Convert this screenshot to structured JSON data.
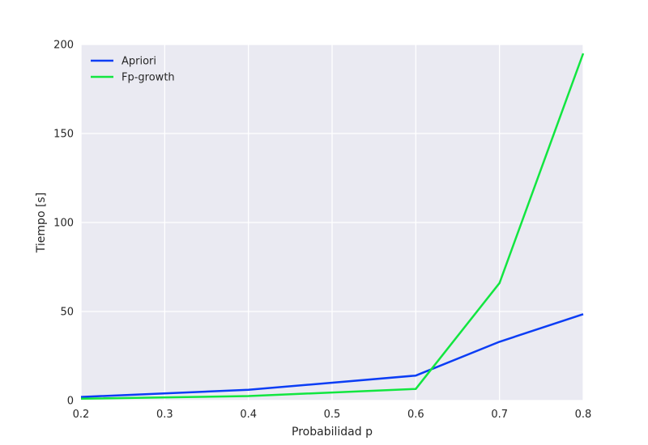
{
  "chart_data": {
    "type": "line",
    "x": [
      0.2,
      0.4,
      0.6,
      0.7,
      0.8
    ],
    "series": [
      {
        "name": "Apriori",
        "values": [
          2,
          6,
          14,
          33,
          48.5
        ],
        "color": "#0b3df5"
      },
      {
        "name": "Fp-growth",
        "values": [
          1,
          2.5,
          6.5,
          66,
          195
        ],
        "color": "#12e640"
      }
    ],
    "xlabel": "Probabilidad p",
    "ylabel": "Tiempo [s]",
    "xlim": [
      0.2,
      0.8
    ],
    "ylim": [
      0,
      200
    ],
    "xticks": [
      0.2,
      0.3,
      0.4,
      0.5,
      0.6,
      0.7,
      0.8
    ],
    "xtick_labels": [
      "0.2",
      "0.3",
      "0.4",
      "0.5",
      "0.6",
      "0.7",
      "0.8"
    ],
    "yticks": [
      0,
      50,
      100,
      150,
      200
    ],
    "ytick_labels": [
      "0",
      "50",
      "100",
      "150",
      "200"
    ],
    "grid": true,
    "legend_position": "top-left",
    "plot_background": "#eaeaf2",
    "grid_color": "#ffffff"
  }
}
